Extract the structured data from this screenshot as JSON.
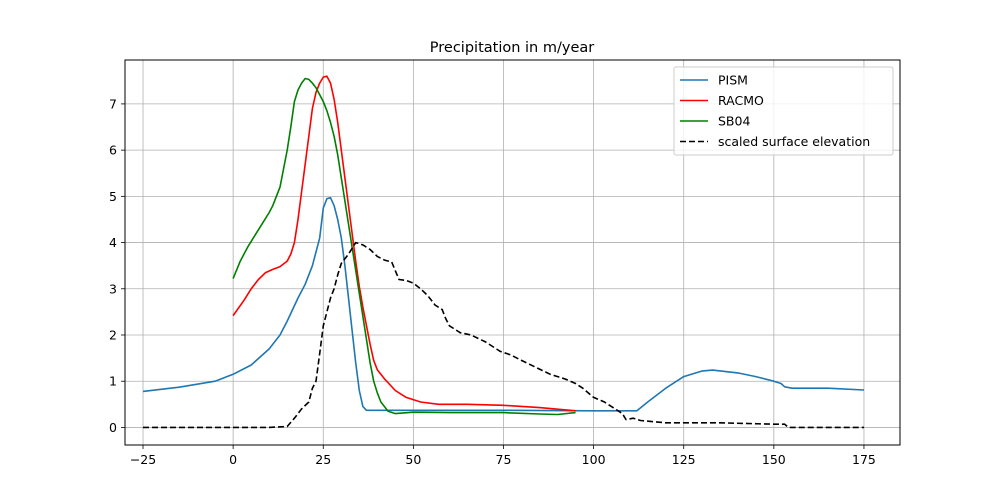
{
  "chart_data": {
    "type": "line",
    "title": "Precipitation in m/year",
    "xlabel": "",
    "ylabel": "",
    "xlim": [
      -30,
      185
    ],
    "ylim": [
      -0.38,
      7.95
    ],
    "xticks": [
      -25,
      0,
      25,
      50,
      75,
      100,
      125,
      150,
      175
    ],
    "yticks": [
      0,
      1,
      2,
      3,
      4,
      5,
      6,
      7
    ],
    "grid": true,
    "legend_position": "top-right",
    "series": [
      {
        "name": "PISM",
        "color": "#1f77b4",
        "dash": "solid",
        "points": [
          [
            -25,
            0.78
          ],
          [
            -15,
            0.87
          ],
          [
            -5,
            1.0
          ],
          [
            0,
            1.15
          ],
          [
            5,
            1.35
          ],
          [
            10,
            1.7
          ],
          [
            13,
            2.0
          ],
          [
            15,
            2.3
          ],
          [
            18,
            2.8
          ],
          [
            20,
            3.1
          ],
          [
            22,
            3.5
          ],
          [
            24,
            4.1
          ],
          [
            25,
            4.75
          ],
          [
            26,
            4.95
          ],
          [
            27,
            4.97
          ],
          [
            28,
            4.8
          ],
          [
            29,
            4.5
          ],
          [
            30,
            4.1
          ],
          [
            31,
            3.5
          ],
          [
            32,
            2.8
          ],
          [
            33,
            2.1
          ],
          [
            34,
            1.4
          ],
          [
            35,
            0.8
          ],
          [
            36,
            0.45
          ],
          [
            37,
            0.37
          ],
          [
            50,
            0.37
          ],
          [
            75,
            0.37
          ],
          [
            100,
            0.36
          ],
          [
            112,
            0.36
          ],
          [
            115,
            0.55
          ],
          [
            120,
            0.85
          ],
          [
            125,
            1.1
          ],
          [
            130,
            1.22
          ],
          [
            133,
            1.24
          ],
          [
            140,
            1.18
          ],
          [
            145,
            1.1
          ],
          [
            150,
            1.0
          ],
          [
            152,
            0.95
          ],
          [
            153,
            0.88
          ],
          [
            155,
            0.85
          ],
          [
            165,
            0.85
          ],
          [
            175,
            0.81
          ]
        ]
      },
      {
        "name": "RACMO",
        "color": "#ff0000",
        "dash": "solid",
        "points": [
          [
            0,
            2.42
          ],
          [
            3,
            2.75
          ],
          [
            5,
            3.0
          ],
          [
            7,
            3.2
          ],
          [
            9,
            3.35
          ],
          [
            11,
            3.42
          ],
          [
            13,
            3.48
          ],
          [
            15,
            3.6
          ],
          [
            16,
            3.75
          ],
          [
            17,
            4.0
          ],
          [
            18,
            4.5
          ],
          [
            19,
            5.1
          ],
          [
            20,
            5.7
          ],
          [
            21,
            6.3
          ],
          [
            22,
            6.9
          ],
          [
            23,
            7.25
          ],
          [
            24,
            7.45
          ],
          [
            25,
            7.58
          ],
          [
            26,
            7.6
          ],
          [
            27,
            7.45
          ],
          [
            28,
            7.1
          ],
          [
            29,
            6.6
          ],
          [
            30,
            6.0
          ],
          [
            31,
            5.4
          ],
          [
            32,
            4.8
          ],
          [
            33,
            4.2
          ],
          [
            34,
            3.6
          ],
          [
            35,
            3.05
          ],
          [
            36,
            2.6
          ],
          [
            37,
            2.2
          ],
          [
            38,
            1.8
          ],
          [
            39,
            1.45
          ],
          [
            40,
            1.25
          ],
          [
            42,
            1.05
          ],
          [
            45,
            0.8
          ],
          [
            48,
            0.65
          ],
          [
            52,
            0.55
          ],
          [
            57,
            0.5
          ],
          [
            65,
            0.5
          ],
          [
            75,
            0.48
          ],
          [
            85,
            0.43
          ],
          [
            95,
            0.36
          ]
        ]
      },
      {
        "name": "SB04",
        "color": "#008000",
        "dash": "solid",
        "points": [
          [
            0,
            3.22
          ],
          [
            2,
            3.6
          ],
          [
            4,
            3.9
          ],
          [
            6,
            4.15
          ],
          [
            8,
            4.4
          ],
          [
            10,
            4.65
          ],
          [
            11,
            4.8
          ],
          [
            12,
            5.0
          ],
          [
            13,
            5.2
          ],
          [
            14,
            5.6
          ],
          [
            15,
            6.0
          ],
          [
            16,
            6.5
          ],
          [
            17,
            7.05
          ],
          [
            18,
            7.3
          ],
          [
            19,
            7.45
          ],
          [
            20,
            7.55
          ],
          [
            21,
            7.53
          ],
          [
            22,
            7.45
          ],
          [
            23,
            7.35
          ],
          [
            24,
            7.2
          ],
          [
            25,
            7.05
          ],
          [
            26,
            6.85
          ],
          [
            27,
            6.6
          ],
          [
            28,
            6.3
          ],
          [
            29,
            5.9
          ],
          [
            30,
            5.4
          ],
          [
            31,
            4.9
          ],
          [
            32,
            4.4
          ],
          [
            33,
            3.9
          ],
          [
            34,
            3.4
          ],
          [
            35,
            2.9
          ],
          [
            36,
            2.4
          ],
          [
            37,
            1.9
          ],
          [
            38,
            1.4
          ],
          [
            39,
            1.0
          ],
          [
            40,
            0.75
          ],
          [
            41,
            0.55
          ],
          [
            43,
            0.35
          ],
          [
            45,
            0.3
          ],
          [
            50,
            0.33
          ],
          [
            60,
            0.32
          ],
          [
            75,
            0.32
          ],
          [
            85,
            0.29
          ],
          [
            90,
            0.28
          ],
          [
            95,
            0.32
          ]
        ]
      },
      {
        "name": "scaled surface elevation",
        "color": "#000000",
        "dash": "dashed",
        "points": [
          [
            -25,
            0.0
          ],
          [
            0,
            0.0
          ],
          [
            10,
            0.0
          ],
          [
            15,
            0.02
          ],
          [
            17,
            0.2
          ],
          [
            19,
            0.4
          ],
          [
            21,
            0.55
          ],
          [
            22,
            0.85
          ],
          [
            23,
            1.0
          ],
          [
            24,
            1.6
          ],
          [
            25,
            2.2
          ],
          [
            26,
            2.5
          ],
          [
            27,
            2.8
          ],
          [
            28,
            3.0
          ],
          [
            29,
            3.3
          ],
          [
            30,
            3.55
          ],
          [
            32,
            3.75
          ],
          [
            34,
            4.0
          ],
          [
            36,
            3.95
          ],
          [
            38,
            3.85
          ],
          [
            40,
            3.7
          ],
          [
            42,
            3.62
          ],
          [
            44,
            3.58
          ],
          [
            46,
            3.2
          ],
          [
            48,
            3.18
          ],
          [
            50,
            3.12
          ],
          [
            52,
            3.0
          ],
          [
            54,
            2.85
          ],
          [
            56,
            2.65
          ],
          [
            58,
            2.55
          ],
          [
            59,
            2.35
          ],
          [
            60,
            2.2
          ],
          [
            63,
            2.05
          ],
          [
            66,
            2.0
          ],
          [
            70,
            1.85
          ],
          [
            74,
            1.65
          ],
          [
            77,
            1.57
          ],
          [
            80,
            1.45
          ],
          [
            84,
            1.3
          ],
          [
            88,
            1.15
          ],
          [
            92,
            1.05
          ],
          [
            95,
            0.95
          ],
          [
            97,
            0.85
          ],
          [
            100,
            0.65
          ],
          [
            103,
            0.55
          ],
          [
            106,
            0.4
          ],
          [
            108,
            0.3
          ],
          [
            109,
            0.17
          ],
          [
            111,
            0.2
          ],
          [
            113,
            0.15
          ],
          [
            120,
            0.1
          ],
          [
            135,
            0.1
          ],
          [
            150,
            0.07
          ],
          [
            153,
            0.07
          ],
          [
            154,
            0.0
          ],
          [
            175,
            0.0
          ]
        ]
      }
    ]
  }
}
